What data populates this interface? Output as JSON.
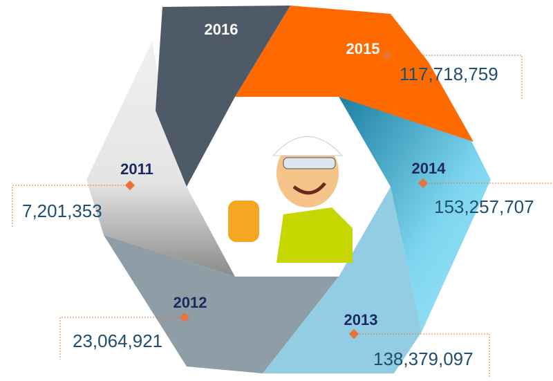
{
  "segments": [
    {
      "year": "2016"
    },
    {
      "year": "2015",
      "value": "117,718,759"
    },
    {
      "year": "2014",
      "value": "153,257,707"
    },
    {
      "year": "2013",
      "value": "138,379,097"
    },
    {
      "year": "2012",
      "value": "23,064,921"
    },
    {
      "year": "2011",
      "value": "7,201,353"
    }
  ]
}
